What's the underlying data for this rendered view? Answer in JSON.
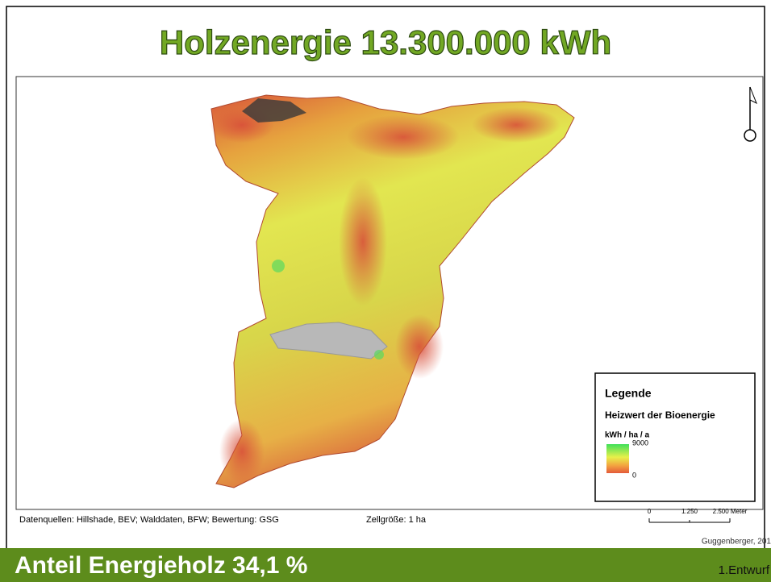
{
  "header": {
    "title": "Holzenergie 13.300.000 kWh"
  },
  "map": {
    "legend": {
      "title": "Legende",
      "subtitle": "Heizwert der Bioenergie",
      "unit": "kWh / ha / a",
      "max": 9000,
      "min": 0
    },
    "sources": "Datenquellen: Hillshade, BEV; Walddaten, BFW; Bewertung: GSG",
    "cell_size": "Zellgröße: 1 ha",
    "scale_bar": {
      "labels": [
        "0",
        "1.250",
        "2.500 Meter"
      ]
    },
    "credit": "Guggenberger, 201"
  },
  "footer": {
    "text": "Anteil Energieholz 34,1 %",
    "version": "1.Entwurf"
  }
}
